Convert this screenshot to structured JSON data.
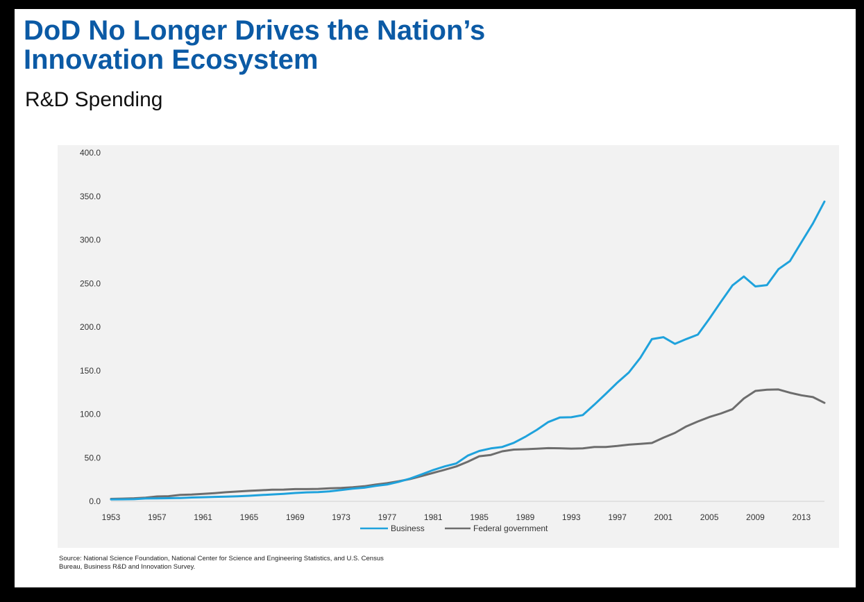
{
  "title": {
    "line1": "DoD No Longer Drives the Nation’s",
    "line2": "Innovation Ecosystem"
  },
  "subtitle": "R&D Spending",
  "source": {
    "line1": "Source: National Science Foundation, National Center for Science and Engineering Statistics, and U.S. Census",
    "line2": "Bureau, Business R&D and Innovation Survey."
  },
  "colors": {
    "title": "#0b5aa5",
    "business": "#1fa2dc",
    "federal": "#6d6d6d",
    "plot_bg": "#f2f2f2",
    "frame": "#000000"
  },
  "chart_data": {
    "type": "line",
    "title": "",
    "xlabel": "",
    "ylabel": "",
    "ylim": [
      0,
      400
    ],
    "xlim": [
      1953,
      2015
    ],
    "yticks": [
      "0.0",
      "50.0",
      "100.0",
      "150.0",
      "200.0",
      "250.0",
      "300.0",
      "350.0",
      "400.0"
    ],
    "xticks": [
      "1953",
      "1957",
      "1961",
      "1965",
      "1969",
      "1973",
      "1977",
      "1981",
      "1985",
      "1989",
      "1993",
      "1997",
      "2001",
      "2005",
      "2009",
      "2013"
    ],
    "grid": false,
    "legend": "bottom",
    "x": [
      1953,
      1954,
      1955,
      1956,
      1957,
      1958,
      1959,
      1960,
      1961,
      1962,
      1963,
      1964,
      1965,
      1966,
      1967,
      1968,
      1969,
      1970,
      1971,
      1972,
      1973,
      1974,
      1975,
      1976,
      1977,
      1978,
      1979,
      1980,
      1981,
      1982,
      1983,
      1984,
      1985,
      1986,
      1987,
      1988,
      1989,
      1990,
      1991,
      1992,
      1993,
      1994,
      1995,
      1996,
      1997,
      1998,
      1999,
      2000,
      2001,
      2002,
      2003,
      2004,
      2005,
      2006,
      2007,
      2008,
      2009,
      2010,
      2011,
      2012,
      2013,
      2014,
      2015
    ],
    "series": [
      {
        "name": "Business",
        "values": [
          2.2,
          2.3,
          2.5,
          3.3,
          3.4,
          3.6,
          3.8,
          4.4,
          4.7,
          5.1,
          5.4,
          5.8,
          6.4,
          7.2,
          7.9,
          8.6,
          9.6,
          10.3,
          10.6,
          11.5,
          13.0,
          14.6,
          15.6,
          17.7,
          19.3,
          22.4,
          26.1,
          30.9,
          35.9,
          40.1,
          43.4,
          52.4,
          57.8,
          60.7,
          62.4,
          67.1,
          74.0,
          82.0,
          91.0,
          96.2,
          96.5,
          99.0,
          110.9,
          123.4,
          136.2,
          147.8,
          164.7,
          186.1,
          188.4,
          180.7,
          186.2,
          191.3,
          209.6,
          228.9,
          247.7,
          258.0,
          246.6,
          248.1,
          266.4,
          275.7,
          297.3,
          318.9,
          344.0
        ]
      },
      {
        "name": "Federal government",
        "values": [
          2.8,
          3.1,
          3.5,
          4.2,
          5.6,
          5.9,
          7.3,
          7.7,
          8.6,
          9.4,
          10.4,
          11.2,
          12.0,
          12.7,
          13.3,
          13.5,
          14.0,
          14.0,
          14.3,
          15.0,
          15.4,
          16.2,
          17.3,
          19.2,
          20.8,
          23.0,
          25.6,
          29.0,
          32.7,
          36.2,
          40.0,
          45.4,
          51.7,
          53.2,
          57.4,
          59.4,
          59.8,
          60.3,
          61.0,
          60.9,
          60.5,
          60.8,
          62.4,
          62.3,
          63.5,
          65.0,
          66.0,
          66.9,
          73.0,
          78.5,
          86.0,
          91.6,
          96.7,
          100.8,
          105.7,
          118.0,
          126.7,
          128.1,
          128.4,
          124.6,
          121.7,
          119.6,
          113.0
        ]
      }
    ]
  }
}
